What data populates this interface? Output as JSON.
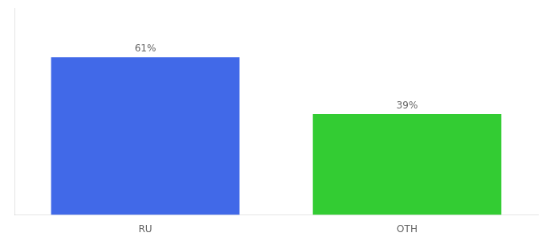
{
  "chart_data": {
    "type": "bar",
    "categories": [
      "RU",
      "OTH"
    ],
    "values": [
      61,
      39
    ],
    "value_labels": [
      "61%",
      "39%"
    ],
    "data_labels": true,
    "colors": [
      "#4169e8",
      "#33cc33"
    ],
    "ylim": [
      0,
      80
    ],
    "yticks": [],
    "tick_labels": "x",
    "grid": false
  }
}
